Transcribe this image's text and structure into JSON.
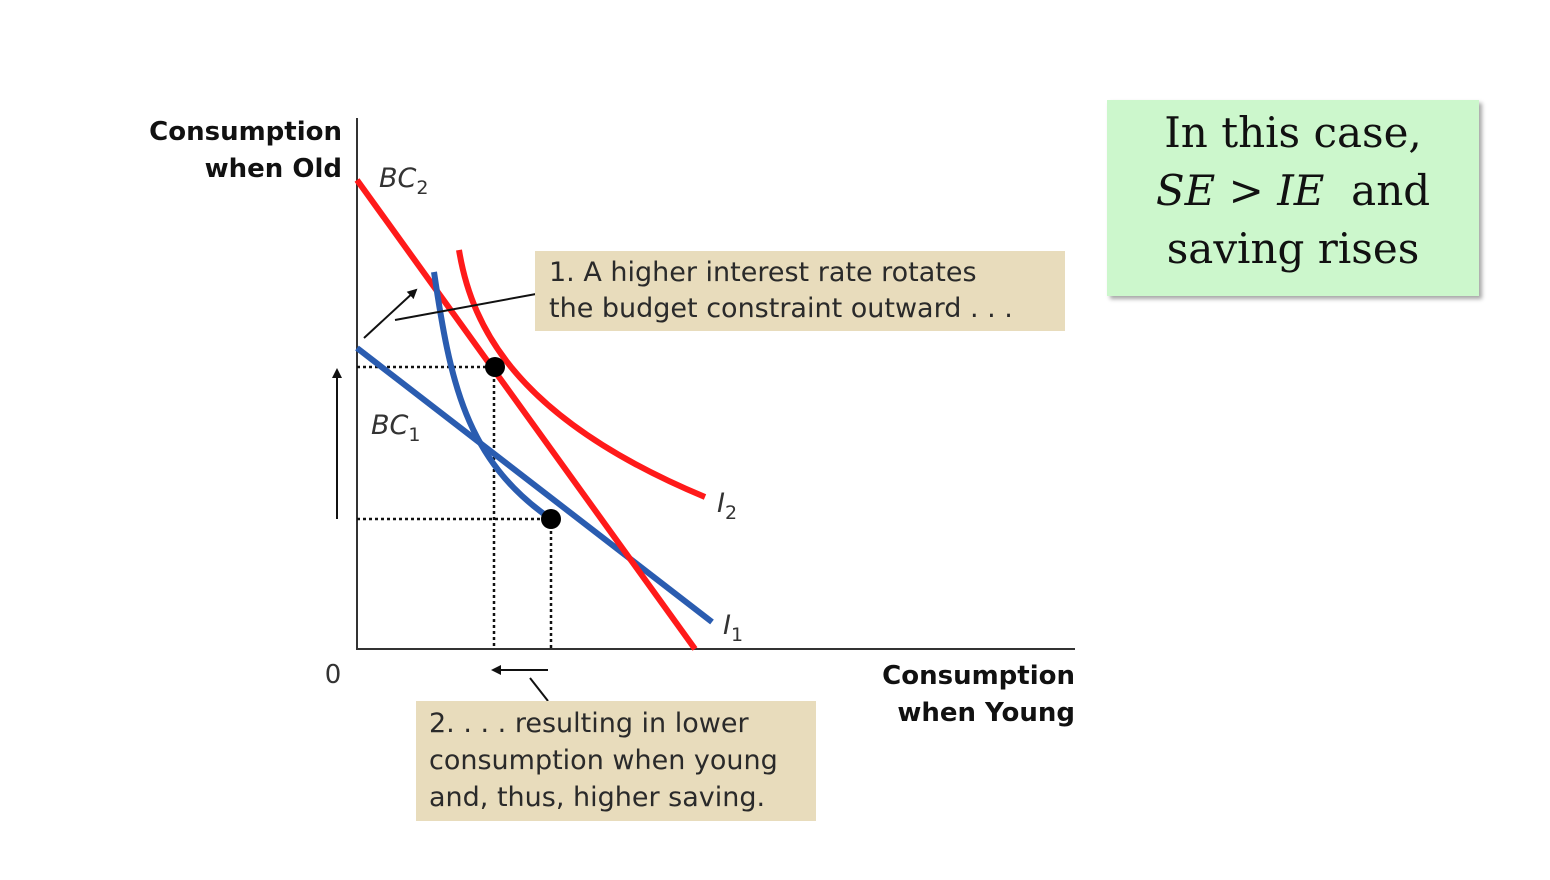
{
  "axes": {
    "y_title_line1": "Consumption",
    "y_title_line2": "when Old",
    "x_title_line1": "Consumption",
    "x_title_line2": "when Young",
    "origin": "0"
  },
  "curves": {
    "bc2": {
      "base": "BC",
      "sub": "2",
      "color": "#ff1a1a"
    },
    "bc1": {
      "base": "BC",
      "sub": "1",
      "color": "#2a5cb0"
    },
    "i2": {
      "base": "I",
      "sub": "2",
      "color": "#ff1a1a"
    },
    "i1": {
      "base": "I",
      "sub": "1",
      "color": "#2a5cb0"
    }
  },
  "note1": {
    "line1": "1. A higher interest rate rotates",
    "line2": "the budget constraint outward . . ."
  },
  "note2": {
    "line1": "2. . . . resulting in lower",
    "line2": "consumption when young",
    "line3": "and, thus, higher saving."
  },
  "callout": {
    "line1": "In this case,",
    "se": "SE",
    "gt": ">",
    "ie": "IE",
    "and": "and",
    "line3": "saving rises"
  },
  "colors": {
    "note_bg": "#e8dcbc",
    "callout_bg": "#ccf7cc"
  }
}
